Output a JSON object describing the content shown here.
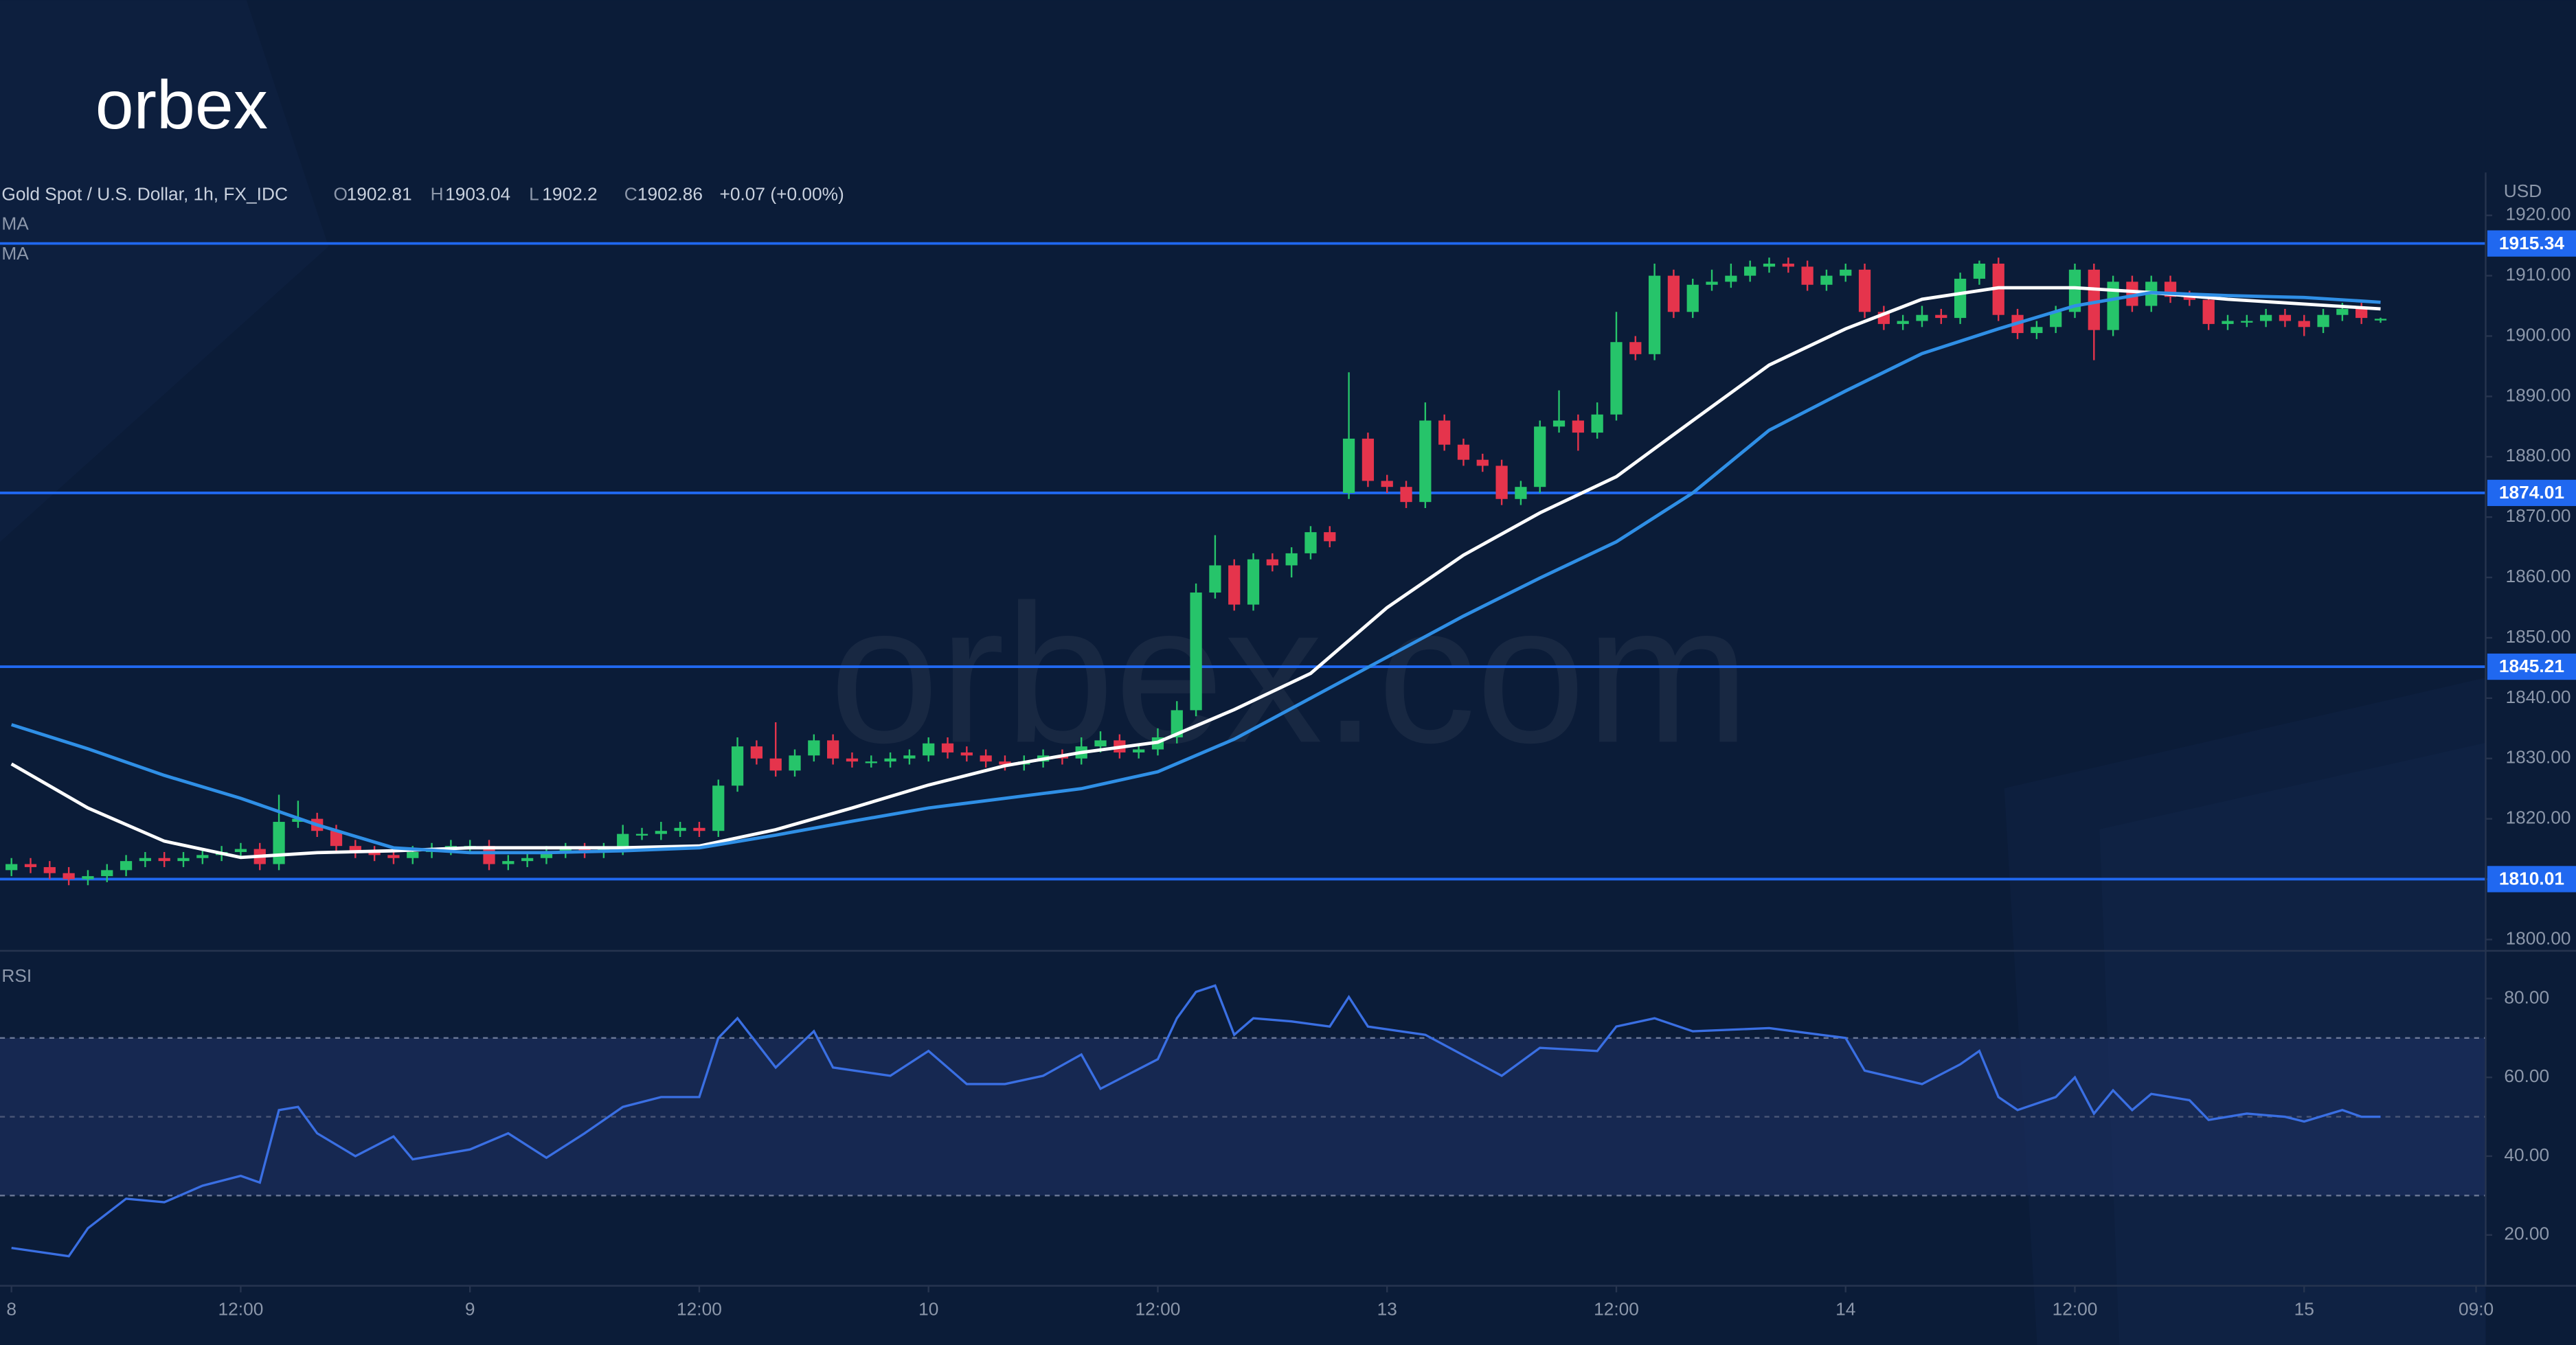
{
  "logo": "orbex",
  "watermark": "orbex.com",
  "chart_data": [
    {
      "type": "candlestick",
      "title": "Gold Spot / U.S. Dollar, 1h, FX_IDC",
      "ohlc_labels": [
        "O",
        "H",
        "L",
        "C"
      ],
      "change": "+0.07 (+0.00%)",
      "unit": "USD",
      "up_color": "#26c46a",
      "down_color": "#e5344c",
      "level_color": "#2068f0",
      "xlim": [
        -0.6,
        129.5
      ],
      "xticks": [
        {
          "value": 0,
          "label": "8"
        },
        {
          "value": 12,
          "label": "12:00"
        },
        {
          "value": 24,
          "label": "9"
        },
        {
          "value": 36,
          "label": "12:00"
        },
        {
          "value": 48,
          "label": "10"
        },
        {
          "value": 60,
          "label": "12:00"
        },
        {
          "value": 72,
          "label": "13"
        },
        {
          "value": 84,
          "label": "12:00"
        },
        {
          "value": 96,
          "label": "14"
        },
        {
          "value": 108,
          "label": "12:00"
        },
        {
          "value": 120,
          "label": "15"
        },
        {
          "value": 129,
          "label": "09:0"
        }
      ],
      "ylim": [
        1798.4,
        1927.1
      ],
      "yticks": [
        {
          "value": 1800,
          "label": "1800.00"
        },
        {
          "value": 1810,
          "label": "1810.00"
        },
        {
          "value": 1820,
          "label": "1820.00"
        },
        {
          "value": 1830,
          "label": "1830.00"
        },
        {
          "value": 1840,
          "label": "1840.00"
        },
        {
          "value": 1850,
          "label": "1850.00"
        },
        {
          "value": 1860,
          "label": "1860.00"
        },
        {
          "value": 1870,
          "label": "1870.00"
        },
        {
          "value": 1880,
          "label": "1880.00"
        },
        {
          "value": 1890,
          "label": "1890.00"
        },
        {
          "value": 1900,
          "label": "1900.00"
        },
        {
          "value": 1910,
          "label": "1910.00"
        },
        {
          "value": 1920,
          "label": "1920.00"
        }
      ],
      "levels": [
        1915.34,
        1874.01,
        1845.21,
        1810.01
      ],
      "ohlc": [
        [
          1811.5,
          1813.5,
          1810.5,
          1812.5
        ],
        [
          1812.5,
          1813.5,
          1811,
          1812
        ],
        [
          1812,
          1813,
          1810,
          1811
        ],
        [
          1811,
          1812,
          1809,
          1810
        ],
        [
          1810,
          1811.5,
          1809,
          1810.5
        ],
        [
          1810.5,
          1812.5,
          1809.5,
          1811.5
        ],
        [
          1811.5,
          1814,
          1810.5,
          1813
        ],
        [
          1813,
          1814.5,
          1812,
          1813.5
        ],
        [
          1813.5,
          1814.5,
          1812,
          1813
        ],
        [
          1813,
          1814.5,
          1812,
          1813.5
        ],
        [
          1813.5,
          1815,
          1812.5,
          1814
        ],
        [
          1814,
          1815.5,
          1813,
          1814.5
        ],
        [
          1814.5,
          1816,
          1813.5,
          1815
        ],
        [
          1815,
          1816,
          1811.5,
          1812.5
        ],
        [
          1812.5,
          1824,
          1811.5,
          1819.5
        ],
        [
          1819.5,
          1823,
          1818.5,
          1820
        ],
        [
          1820,
          1821,
          1817,
          1818
        ],
        [
          1818,
          1819,
          1814.5,
          1815.5
        ],
        [
          1815.5,
          1816.5,
          1813.5,
          1814.5
        ],
        [
          1814.5,
          1815.5,
          1813,
          1814
        ],
        [
          1814,
          1815,
          1812.5,
          1813.5
        ],
        [
          1813.5,
          1815.5,
          1812.5,
          1814.5
        ],
        [
          1814.5,
          1816,
          1813.5,
          1815
        ],
        [
          1815,
          1816.5,
          1814,
          1815.5
        ],
        [
          1815.5,
          1816.5,
          1814.5,
          1815.5
        ],
        [
          1815.5,
          1816.5,
          1811.5,
          1812.5
        ],
        [
          1812.5,
          1814,
          1811.5,
          1813
        ],
        [
          1813,
          1814.5,
          1812,
          1813.5
        ],
        [
          1813.5,
          1815.5,
          1812.5,
          1814.5
        ],
        [
          1814.5,
          1816,
          1813.5,
          1815
        ],
        [
          1815,
          1816,
          1813.5,
          1814.5
        ],
        [
          1814.5,
          1816,
          1813.5,
          1815
        ],
        [
          1815,
          1819,
          1814,
          1817.5
        ],
        [
          1817.5,
          1818.5,
          1816.5,
          1817.5
        ],
        [
          1817.5,
          1819.5,
          1816.5,
          1818
        ],
        [
          1818,
          1819.5,
          1817,
          1818.5
        ],
        [
          1818.5,
          1819.5,
          1817,
          1818
        ],
        [
          1818,
          1826.5,
          1817,
          1825.5
        ],
        [
          1825.5,
          1833.5,
          1824.5,
          1832
        ],
        [
          1832,
          1833,
          1829,
          1830
        ],
        [
          1830,
          1836,
          1827,
          1828
        ],
        [
          1828,
          1831.5,
          1827,
          1830.5
        ],
        [
          1830.5,
          1834,
          1829.5,
          1833
        ],
        [
          1833,
          1834,
          1829,
          1830
        ],
        [
          1830,
          1831,
          1828.5,
          1829.5
        ],
        [
          1829.5,
          1830.5,
          1828.5,
          1829.5
        ],
        [
          1829.5,
          1831,
          1828.5,
          1830
        ],
        [
          1830,
          1831.5,
          1829,
          1830.5
        ],
        [
          1830.5,
          1833.5,
          1829.5,
          1832.5
        ],
        [
          1832.5,
          1833.5,
          1830,
          1831
        ],
        [
          1831,
          1832,
          1829.5,
          1830.5
        ],
        [
          1830.5,
          1831.5,
          1828.5,
          1829.5
        ],
        [
          1829.5,
          1830.5,
          1828,
          1829
        ],
        [
          1829,
          1830.5,
          1828,
          1829.5
        ],
        [
          1829.5,
          1831.5,
          1828.5,
          1830.5
        ],
        [
          1830.5,
          1831.5,
          1829,
          1830
        ],
        [
          1830,
          1833.5,
          1829,
          1832
        ],
        [
          1832,
          1834.5,
          1831,
          1833
        ],
        [
          1833,
          1834,
          1830,
          1831
        ],
        [
          1831,
          1832.5,
          1830,
          1831.5
        ],
        [
          1831.5,
          1835,
          1830.5,
          1833.5
        ],
        [
          1833.5,
          1839.5,
          1832.5,
          1838
        ],
        [
          1838,
          1859,
          1837,
          1857.5
        ],
        [
          1857.5,
          1867,
          1856.5,
          1862
        ],
        [
          1862,
          1863,
          1854.5,
          1855.5
        ],
        [
          1855.5,
          1864,
          1854.5,
          1863
        ],
        [
          1863,
          1864,
          1861,
          1862
        ],
        [
          1862,
          1865,
          1860,
          1864
        ],
        [
          1864,
          1868.5,
          1863,
          1867.5
        ],
        [
          1867.5,
          1868.5,
          1865,
          1866
        ],
        [
          1874,
          1894,
          1873,
          1883
        ],
        [
          1883,
          1884,
          1875,
          1876
        ],
        [
          1876,
          1877,
          1874,
          1875
        ],
        [
          1875,
          1876,
          1871.5,
          1872.5
        ],
        [
          1872.5,
          1889,
          1871.5,
          1886
        ],
        [
          1886,
          1887,
          1881,
          1882
        ],
        [
          1882,
          1883,
          1878.5,
          1879.5
        ],
        [
          1879.5,
          1880.5,
          1877.5,
          1878.5
        ],
        [
          1878.5,
          1879.5,
          1872,
          1873
        ],
        [
          1873,
          1876,
          1872,
          1875
        ],
        [
          1875,
          1886,
          1874,
          1885
        ],
        [
          1885,
          1891,
          1884,
          1886
        ],
        [
          1886,
          1887,
          1881,
          1884
        ],
        [
          1884,
          1889,
          1883,
          1887
        ],
        [
          1887,
          1904,
          1886,
          1899
        ],
        [
          1899,
          1900,
          1896,
          1897
        ],
        [
          1897,
          1912,
          1896,
          1910
        ],
        [
          1910,
          1911,
          1903,
          1904
        ],
        [
          1904,
          1909.5,
          1903,
          1908.5
        ],
        [
          1908.5,
          1911,
          1907.5,
          1909
        ],
        [
          1909,
          1912,
          1908,
          1910
        ],
        [
          1910,
          1912.5,
          1909,
          1911.5
        ],
        [
          1911.5,
          1913,
          1910.5,
          1912
        ],
        [
          1912,
          1913,
          1910.5,
          1911.5
        ],
        [
          1911.5,
          1912.5,
          1907.5,
          1908.5
        ],
        [
          1908.5,
          1911,
          1907.5,
          1910
        ],
        [
          1910,
          1912,
          1909,
          1911
        ],
        [
          1911,
          1912,
          1903,
          1904
        ],
        [
          1904,
          1905,
          1901,
          1902
        ],
        [
          1902,
          1903.5,
          1901,
          1902.5
        ],
        [
          1902.5,
          1905,
          1901.5,
          1903.5
        ],
        [
          1903.5,
          1904.5,
          1902,
          1903
        ],
        [
          1903,
          1910.5,
          1902,
          1909.5
        ],
        [
          1909.5,
          1912.5,
          1908.5,
          1912
        ],
        [
          1912,
          1913,
          1902.5,
          1903.5
        ],
        [
          1903.5,
          1904.5,
          1899.5,
          1900.5
        ],
        [
          1900.5,
          1902.5,
          1899.5,
          1901.5
        ],
        [
          1901.5,
          1905,
          1900.5,
          1904
        ],
        [
          1904,
          1912,
          1903,
          1911
        ],
        [
          1911,
          1912,
          1896,
          1901
        ],
        [
          1901,
          1910,
          1900,
          1909
        ],
        [
          1909,
          1910,
          1904,
          1905
        ],
        [
          1905,
          1910,
          1904,
          1909
        ],
        [
          1909,
          1910,
          1905.5,
          1906.5
        ],
        [
          1906.5,
          1907.5,
          1905,
          1906
        ],
        [
          1906,
          1907,
          1901,
          1902
        ],
        [
          1902,
          1903.5,
          1901,
          1902.5
        ],
        [
          1902.5,
          1903.5,
          1901.5,
          1902.5
        ],
        [
          1902.5,
          1904.5,
          1901.5,
          1903.5
        ],
        [
          1903.5,
          1904.5,
          1901.5,
          1902.5
        ],
        [
          1902.5,
          1903.5,
          1900,
          1901.5
        ],
        [
          1901.5,
          1904.5,
          1900.5,
          1903.5
        ],
        [
          1903.5,
          1905.5,
          1902.5,
          1904.5
        ],
        [
          1904.5,
          1905.5,
          1902,
          1903
        ],
        [
          1902.81,
          1903.04,
          1902.2,
          1902.86
        ]
      ],
      "series": [
        {
          "name": "MA",
          "color": "#ffffff",
          "x": [
            0,
            4,
            8,
            12,
            16,
            20,
            24,
            28,
            32,
            36,
            40,
            44,
            48,
            52,
            56,
            60,
            64,
            68,
            72,
            76,
            80,
            84,
            88,
            92,
            96,
            100,
            104,
            108,
            112,
            116,
            120,
            124
          ],
          "values": [
            1829.1,
            1821.8,
            1816.3,
            1813.6,
            1814.4,
            1814.7,
            1815.2,
            1815.2,
            1815.2,
            1815.5,
            1818.2,
            1821.8,
            1825.6,
            1828.8,
            1831.0,
            1832.7,
            1838.1,
            1844.1,
            1855.0,
            1863.7,
            1870.7,
            1876.7,
            1886.0,
            1895.2,
            1901.2,
            1906.1,
            1908.0,
            1908.0,
            1907.2,
            1906.1,
            1905.3,
            1904.5
          ]
        },
        {
          "name": "MA",
          "color": "#2f8fe6",
          "x": [
            0,
            4,
            8,
            12,
            16,
            20,
            24,
            28,
            32,
            36,
            40,
            44,
            48,
            52,
            56,
            60,
            64,
            68,
            72,
            76,
            80,
            84,
            88,
            92,
            96,
            100,
            104,
            108,
            112,
            116,
            120,
            124
          ],
          "values": [
            1835.6,
            1831.6,
            1827.2,
            1823.4,
            1819.0,
            1815.2,
            1814.4,
            1814.4,
            1814.7,
            1815.2,
            1817.3,
            1819.6,
            1821.8,
            1823.4,
            1825.0,
            1827.8,
            1833.2,
            1840.0,
            1846.8,
            1853.6,
            1859.9,
            1865.9,
            1874.0,
            1884.4,
            1890.9,
            1897.1,
            1901.2,
            1905.0,
            1907.2,
            1906.7,
            1906.4,
            1905.6
          ]
        }
      ]
    },
    {
      "type": "line",
      "title": "RSI",
      "color": "#3a6fe3",
      "band_fill": "#1b2d5c",
      "bands": [
        30,
        70
      ],
      "ylim": [
        7.1,
        91.7
      ],
      "yticks": [
        {
          "value": 20,
          "label": "20.00"
        },
        {
          "value": 40,
          "label": "40.00"
        },
        {
          "value": 60,
          "label": "60.00"
        },
        {
          "value": 80,
          "label": "80.00"
        }
      ],
      "x": [
        0,
        3,
        4,
        6,
        8,
        10,
        12,
        13,
        14,
        15,
        16,
        18,
        20,
        21,
        24,
        26,
        28,
        30,
        32,
        34,
        36,
        37,
        38,
        40,
        42,
        43,
        46,
        48,
        50,
        52,
        54,
        56,
        57,
        60,
        61,
        62,
        63,
        64,
        65,
        67,
        69,
        70,
        71,
        74,
        78,
        80,
        83,
        84,
        86,
        88,
        92,
        96,
        97,
        100,
        102,
        103,
        104,
        105,
        107,
        108,
        109,
        110,
        111,
        112,
        114,
        115,
        117,
        119,
        120,
        122,
        123,
        124
      ],
      "values": [
        16.7,
        14.6,
        21.7,
        29.2,
        28.3,
        32.5,
        35,
        33.3,
        51.7,
        52.5,
        45.8,
        40,
        45,
        39.2,
        41.7,
        45.8,
        39.6,
        45.8,
        52.5,
        55,
        55,
        70,
        75,
        62.5,
        71.7,
        62.5,
        60.4,
        66.7,
        58.3,
        58.3,
        60.4,
        65.8,
        57.1,
        64.6,
        75,
        81.7,
        83.3,
        70.8,
        75,
        74.2,
        72.9,
        80.4,
        72.9,
        70.8,
        60.4,
        67.5,
        66.7,
        72.9,
        75,
        71.7,
        72.5,
        70,
        61.7,
        58.3,
        63.3,
        66.7,
        55,
        51.7,
        55,
        60,
        50.8,
        56.7,
        51.7,
        55.8,
        54.2,
        49.2,
        50.8,
        50,
        48.8,
        51.7,
        50,
        50
      ]
    }
  ]
}
